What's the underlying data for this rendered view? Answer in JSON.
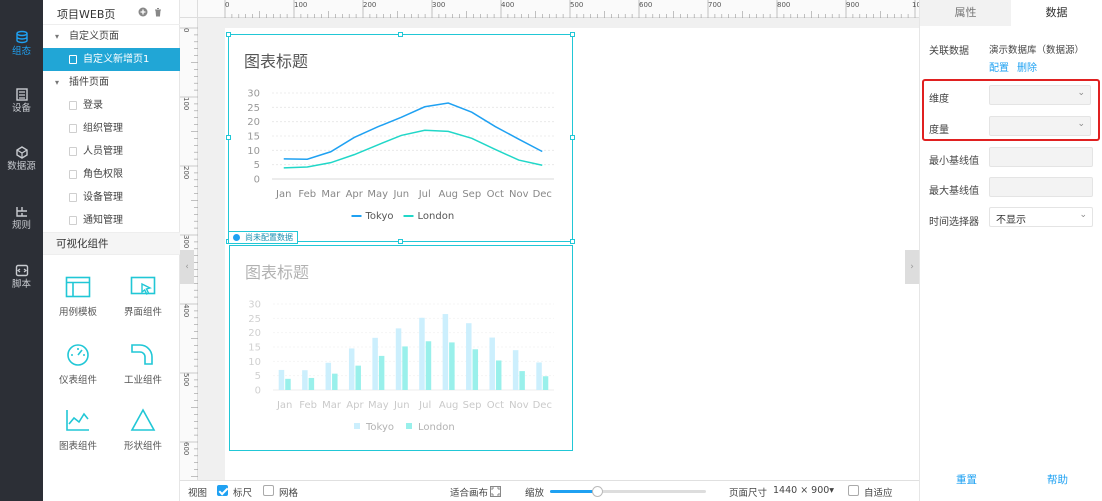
{
  "nav": {
    "items": [
      {
        "label": "组态",
        "icon": "layers-icon",
        "active": true
      },
      {
        "label": "设备",
        "icon": "device-icon"
      },
      {
        "label": "数据源",
        "icon": "datasource-icon"
      },
      {
        "label": "规则",
        "icon": "rule-icon"
      },
      {
        "label": "脚本",
        "icon": "script-icon"
      }
    ]
  },
  "tree": {
    "title": "项目WEB页",
    "custom_group": "自定义页面",
    "selected_page": "自定义新增页1",
    "plugin_group": "插件页面",
    "plugin_pages": [
      "登录",
      "组织管理",
      "人员管理",
      "角色权限",
      "设备管理",
      "通知管理"
    ]
  },
  "widgets": {
    "header": "可视化组件",
    "items": [
      "用例模板",
      "界面组件",
      "仪表组件",
      "工业组件",
      "图表组件",
      "形状组件"
    ]
  },
  "ruler": {
    "top": [
      "0",
      "100",
      "200",
      "300",
      "400",
      "500",
      "600",
      "700",
      "800",
      "900",
      "10"
    ],
    "left": [
      "0",
      "100",
      "200",
      "300",
      "400",
      "500",
      "600"
    ]
  },
  "unconfigured_label": "尚未配置数据",
  "chart_data": [
    {
      "type": "line",
      "title": "图表标题",
      "categories": [
        "Jan",
        "Feb",
        "Mar",
        "Apr",
        "May",
        "Jun",
        "Jul",
        "Aug",
        "Sep",
        "Oct",
        "Nov",
        "Dec"
      ],
      "yticks": [
        "0",
        "5",
        "10",
        "15",
        "20",
        "25",
        "30"
      ],
      "ylim": [
        0,
        30
      ],
      "series": [
        {
          "name": "Tokyo",
          "color": "#1fa1f2",
          "values": [
            7.0,
            6.9,
            9.5,
            14.5,
            18.2,
            21.5,
            25.2,
            26.5,
            23.3,
            18.3,
            13.9,
            9.6
          ]
        },
        {
          "name": "London",
          "color": "#21d7c8",
          "values": [
            3.9,
            4.2,
            5.7,
            8.5,
            11.9,
            15.2,
            17.0,
            16.6,
            14.2,
            10.3,
            6.6,
            4.8
          ]
        }
      ],
      "legend": "bottom"
    },
    {
      "type": "bar",
      "title": "图表标题",
      "categories": [
        "Jan",
        "Feb",
        "Mar",
        "Apr",
        "May",
        "Jun",
        "Jul",
        "Aug",
        "Sep",
        "Oct",
        "Nov",
        "Dec"
      ],
      "yticks": [
        "0",
        "5",
        "10",
        "15",
        "20",
        "25",
        "30"
      ],
      "ylim": [
        0,
        30
      ],
      "series": [
        {
          "name": "Tokyo",
          "color": "#8fdcfb",
          "values": [
            7.0,
            6.9,
            9.5,
            14.5,
            18.2,
            21.5,
            25.2,
            26.5,
            23.3,
            18.3,
            13.9,
            9.6
          ]
        },
        {
          "name": "London",
          "color": "#1fe0d4",
          "values": [
            3.9,
            4.2,
            5.7,
            8.5,
            11.9,
            15.2,
            17.0,
            16.6,
            14.2,
            10.3,
            6.6,
            4.8
          ]
        }
      ],
      "legend": "bottom"
    }
  ],
  "bottombar": {
    "view": "视图",
    "ruler": "标尺",
    "ruler_checked": true,
    "grid": "网格",
    "grid_checked": false,
    "fit_canvas": "适合画布",
    "zoom": "缩放",
    "zoom_level": 0.3,
    "page_size_label": "页面尺寸",
    "page_size": "1440 × 900▾",
    "auto_fit": "自适应"
  },
  "right": {
    "tabs": [
      "属性",
      "数据"
    ],
    "active_tab": 1,
    "linked_label": "关联数据",
    "linked_value": "演示数据库（数据源）",
    "config_link": "配置",
    "delete_link": "删除",
    "dimension_label": "维度",
    "measure_label": "度量",
    "min_label": "最小基线值",
    "max_label": "最大基线值",
    "time_label": "时间选择器",
    "time_value": "不显示",
    "reset": "重置",
    "help": "帮助"
  }
}
